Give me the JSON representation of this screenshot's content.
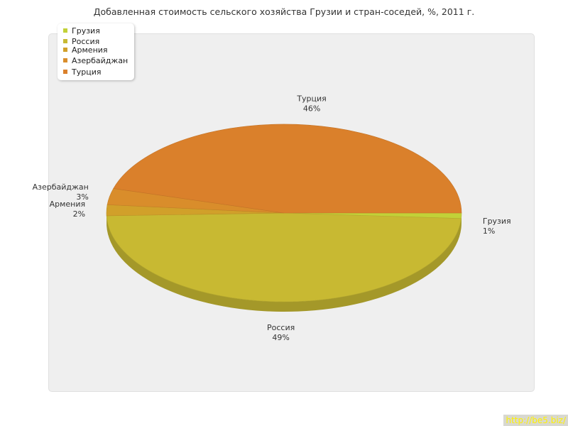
{
  "chart_data": {
    "type": "pie",
    "title": "Добавленная стоимость сельского хозяйства Грузии и стран-соседей, %, 2011 г.",
    "slices": [
      {
        "label": "Грузия",
        "value": 1,
        "pct_label": "1%",
        "color": "#c2d138"
      },
      {
        "label": "Россия",
        "value": 49,
        "pct_label": "49%",
        "color": "#c8b932"
      },
      {
        "label": "Армения",
        "value": 2,
        "pct_label": "2%",
        "color": "#d1a02a"
      },
      {
        "label": "Азербайджан",
        "value": 3,
        "pct_label": "3%",
        "color": "#d98d2b"
      },
      {
        "label": "Турция",
        "value": 46,
        "pct_label": "46%",
        "color": "#da802b"
      }
    ],
    "legend_position": "top-left"
  },
  "legend": {
    "items": [
      {
        "label": "Грузия",
        "color": "#c2d138"
      },
      {
        "label": "Россия",
        "color": "#c8b932"
      },
      {
        "label": "Армения",
        "color": "#d1a02a"
      },
      {
        "label": "Азербайджан",
        "color": "#d98d2b"
      },
      {
        "label": "Турция",
        "color": "#da802b"
      }
    ]
  },
  "watermark": "http://be5.biz/"
}
